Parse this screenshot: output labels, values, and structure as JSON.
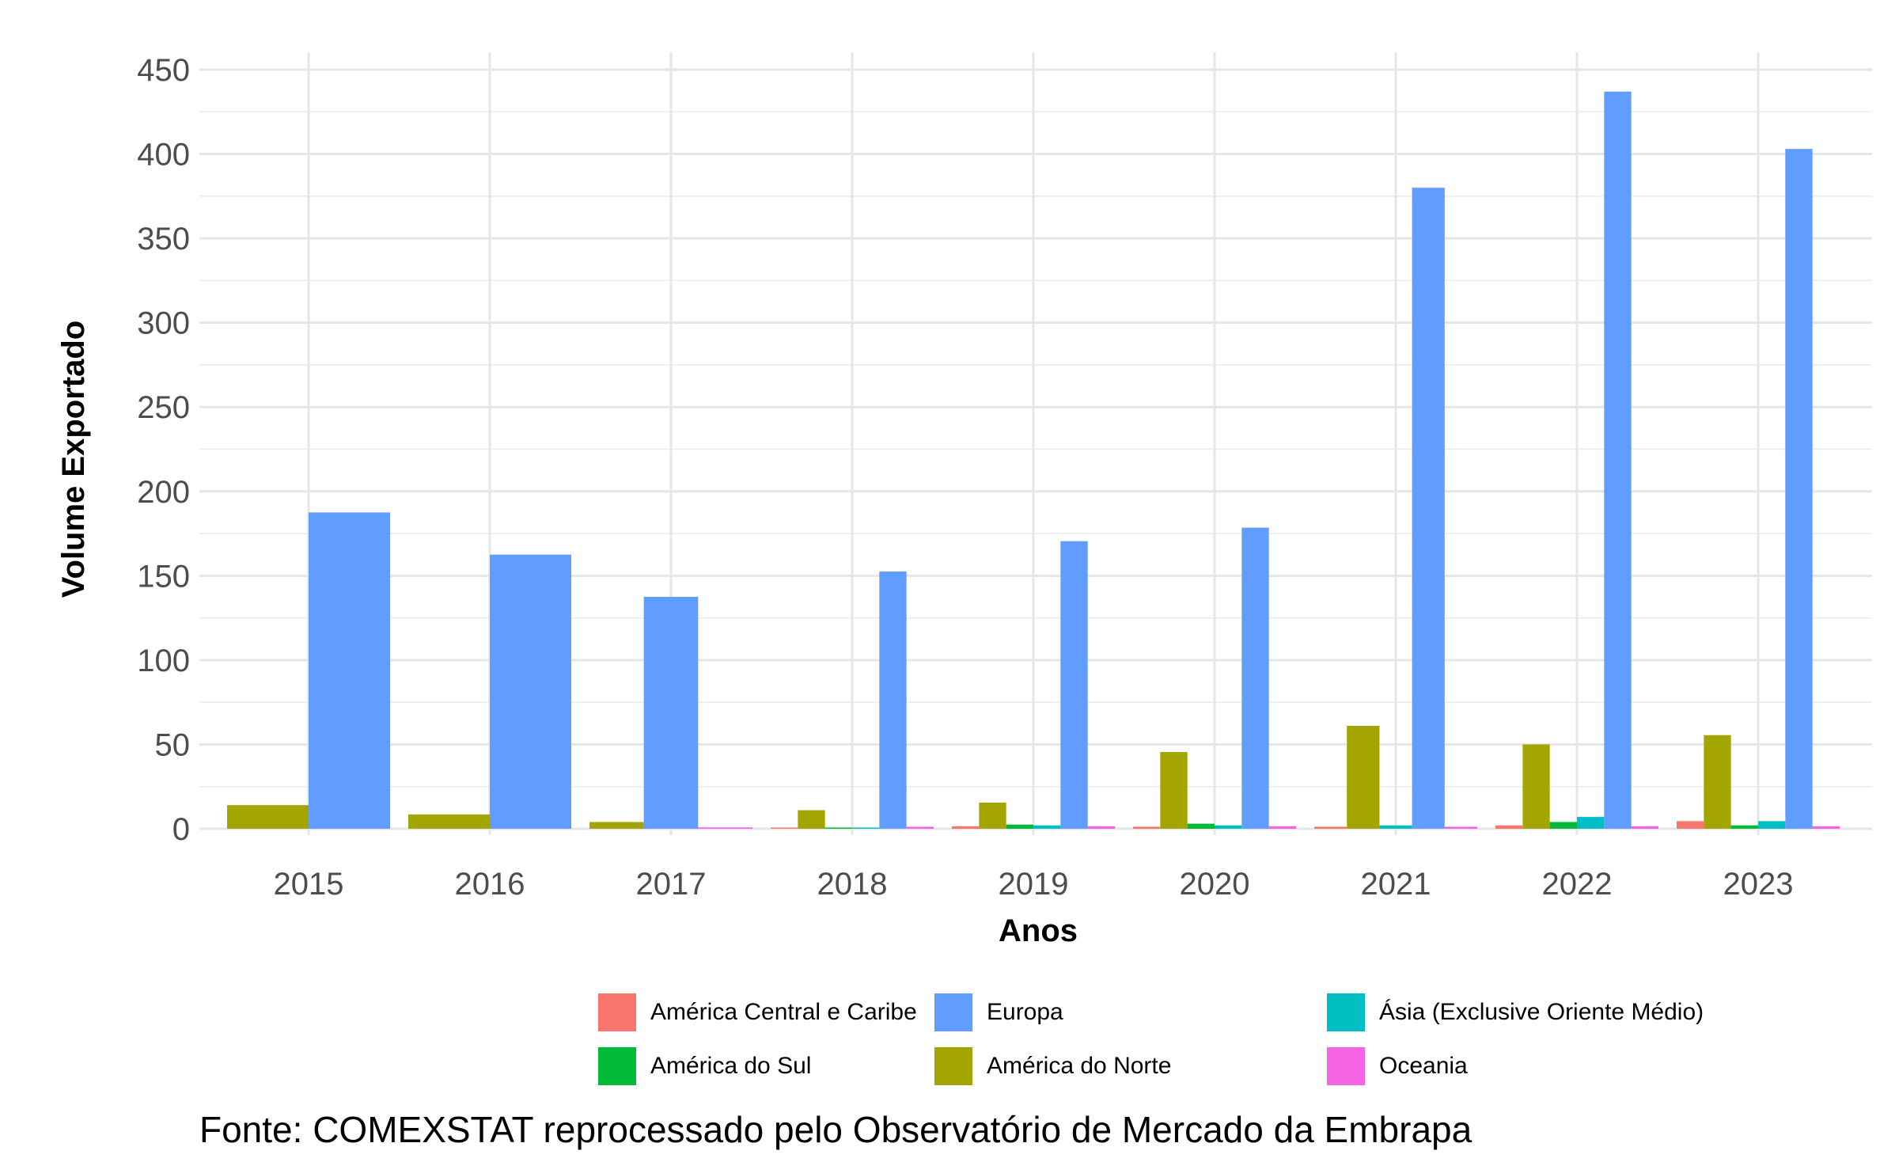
{
  "chart_data": {
    "type": "bar",
    "xlabel": "Anos",
    "ylabel": "Volume Exportado",
    "ylim": [
      0,
      450
    ],
    "yticks": [
      0,
      50,
      100,
      150,
      200,
      250,
      300,
      350,
      400,
      450
    ],
    "grid": true,
    "legend_position": "bottom",
    "categories": [
      "2015",
      "2016",
      "2017",
      "2018",
      "2019",
      "2020",
      "2021",
      "2022",
      "2023"
    ],
    "series": [
      {
        "name": "América Central e Caribe",
        "color": "#F8766D",
        "values": [
          null,
          null,
          null,
          0.3,
          1.5,
          1.2,
          1.2,
          2.0,
          4.5
        ]
      },
      {
        "name": "América do Norte",
        "color": "#A3A500",
        "values": [
          14,
          8.5,
          4,
          11,
          15.5,
          45.5,
          61,
          50,
          55.5
        ]
      },
      {
        "name": "América do Sul",
        "color": "#00BA38",
        "values": [
          null,
          null,
          null,
          0.3,
          2.5,
          3.0,
          null,
          4.0,
          2.0
        ]
      },
      {
        "name": "Ásia (Exclusive Oriente Médio)",
        "color": "#00BFC4",
        "values": [
          null,
          null,
          null,
          0.3,
          2.0,
          2.0,
          2.0,
          7.0,
          4.5
        ]
      },
      {
        "name": "Europa",
        "color": "#619CFF",
        "values": [
          187.5,
          162.5,
          137.5,
          152.5,
          170.5,
          178.5,
          380,
          437,
          403
        ]
      },
      {
        "name": "Oceania",
        "color": "#F564E3",
        "values": [
          null,
          null,
          0.8,
          1.2,
          1.5,
          1.5,
          1.2,
          1.5,
          1.5
        ]
      }
    ],
    "legend_order": [
      0,
      2,
      4,
      1,
      3,
      5
    ]
  },
  "caption": "Fonte: COMEXSTAT reprocessado pelo Observatório de Mercado da Embrapa"
}
